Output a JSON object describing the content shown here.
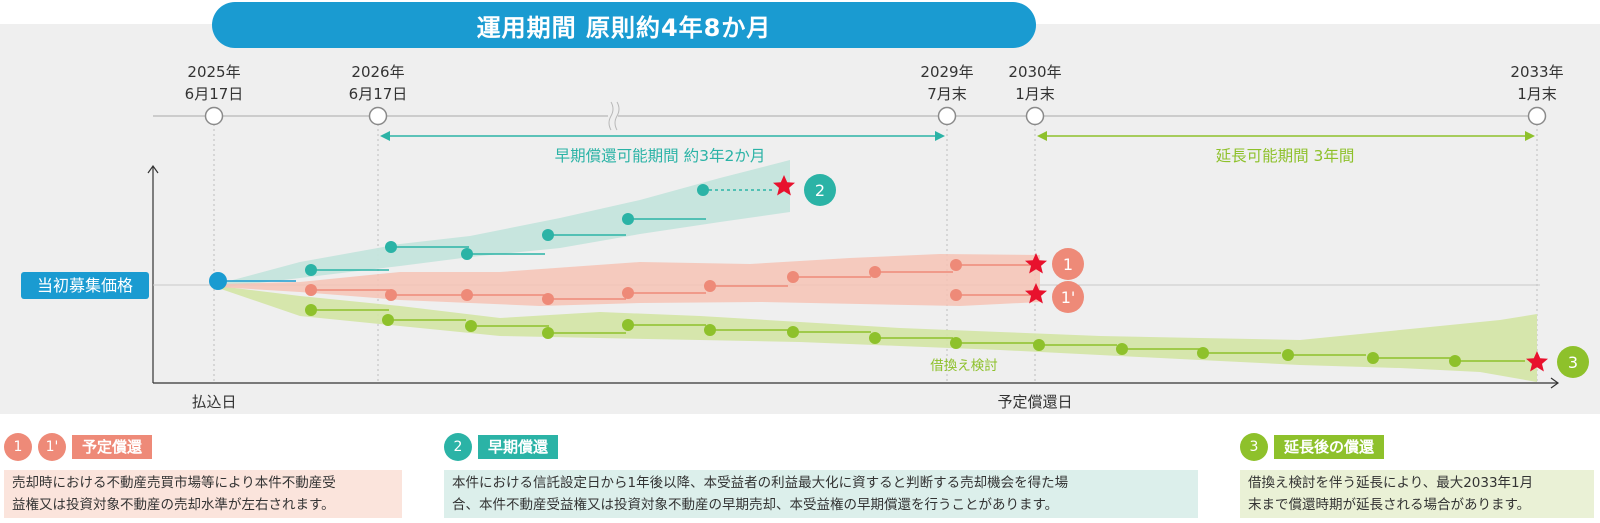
{
  "header": {
    "title": "運用期間 原則約4年8か月"
  },
  "timeline": [
    {
      "year": "2025年",
      "date": "6月17日"
    },
    {
      "year": "2026年",
      "date": "6月17日"
    },
    {
      "year": "2029年",
      "date": "7月末"
    },
    {
      "year": "2030年",
      "date": "1月末"
    },
    {
      "year": "2033年",
      "date": "1月末"
    }
  ],
  "periods": {
    "early": "早期償還可能期間 約3年2か月",
    "extension": "延長可能期間 3年間"
  },
  "axis": {
    "y_label": "当初募集価格",
    "x_start": "払込日",
    "x_scheduled": "予定償還日",
    "refinance": "借換え検討"
  },
  "markers": {
    "m1": "1",
    "m1p": "1'",
    "m2": "2",
    "m3": "3"
  },
  "legend": [
    {
      "badges": [
        "1",
        "1'"
      ],
      "title": "予定償還",
      "lines": [
        "売却時における不動産売買市場等により本件不動産受",
        "益権又は投資対象不動産の売却水準が左右されます。"
      ]
    },
    {
      "badges": [
        "2"
      ],
      "title": "早期償還",
      "lines": [
        "本件における信託設定日から1年後以降、本受益者の利益最大化に資すると判断する売却機会を得た場",
        "合、本件不動産受益権又は投資対象不動産の早期売却、本受益権の早期償還を行うことがあります。"
      ]
    },
    {
      "badges": [
        "3"
      ],
      "title": "延長後の償還",
      "lines": [
        "借換え検討を伴う延長により、最大2033年1月",
        "末まで償還時期が延長される場合があります。"
      ]
    }
  ],
  "colors": {
    "blue": "#1a9bd1",
    "teal": "#2bb3a6",
    "salmon": "#ee8a78",
    "green": "#8ec12b",
    "star": "#e8112d"
  }
}
